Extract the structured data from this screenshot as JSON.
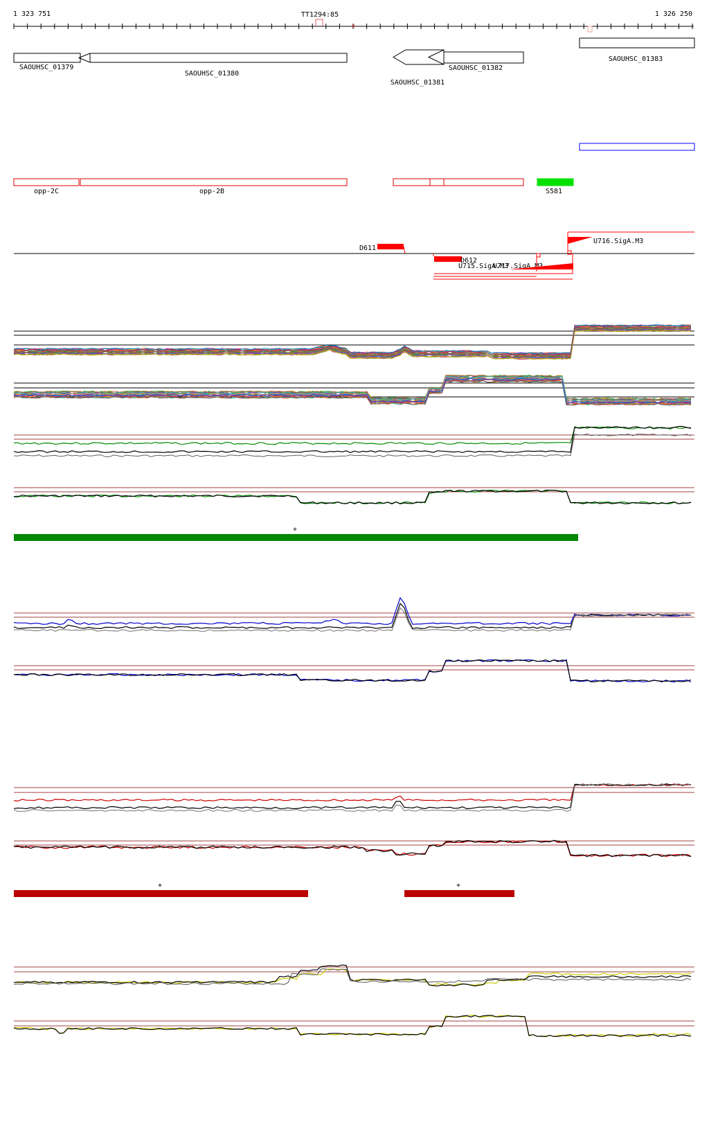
{
  "ruler": {
    "start_label": "1 323 751",
    "end_label": "1 326 250",
    "marker_label": "TT1294:85"
  },
  "genes": [
    {
      "label": "SAOUHSC_01379"
    },
    {
      "label": "SAOUHSC_01380"
    },
    {
      "label": "SAOUHSC_01381"
    },
    {
      "label": "SAOUHSC_01382"
    },
    {
      "label": "SAOUHSC_01383"
    }
  ],
  "operons": [
    {
      "label": "opp-2C"
    },
    {
      "label": "opp-2B"
    },
    {
      "label": "S581"
    }
  ],
  "features": [
    {
      "label": "D611"
    },
    {
      "label": "D612"
    },
    {
      "label": "U715.SigA.M3"
    },
    {
      "label": "U717.SigA.M3"
    },
    {
      "label": "U716.SigA.M3"
    }
  ],
  "segment_marks": {
    "green": "+",
    "red_left": "+",
    "red_right": "+"
  },
  "colors": {
    "gene_outline": "#000000",
    "operon_outline": "#e00000",
    "s581_fill": "#00e000",
    "blue_box": "#0000ff",
    "feature_red": "#ff0000",
    "green_track": "#008800",
    "blue_track": "#0000cc",
    "red_track": "#cc0000",
    "yellow_track": "#cccc00",
    "threshold_line": "#a04040"
  }
}
